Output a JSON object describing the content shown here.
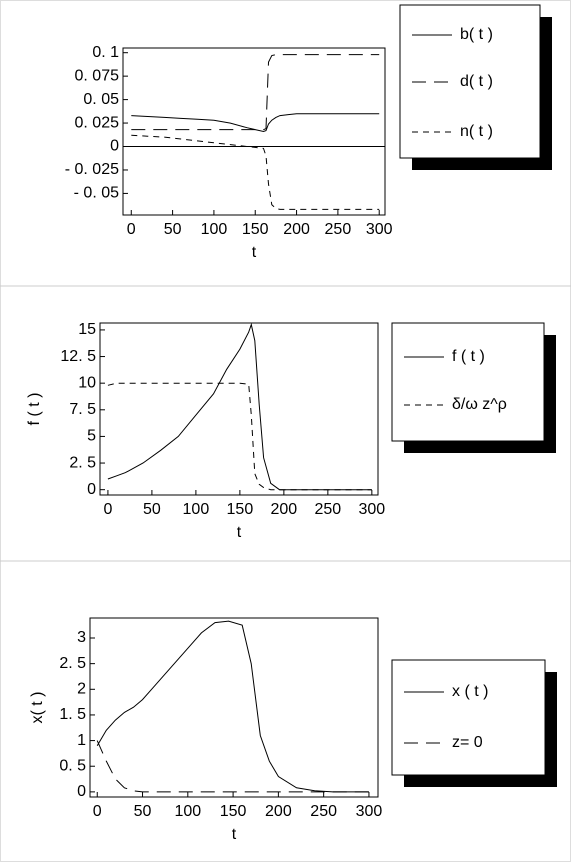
{
  "chart_data": [
    {
      "type": "line",
      "xlabel": "t",
      "xlim": [
        -10,
        307
      ],
      "ylim": [
        -0.073,
        0.105
      ],
      "zero_line": true,
      "xticks": [
        0,
        50,
        100,
        150,
        200,
        250,
        300
      ],
      "yticks": [
        {
          "value": 0.1,
          "label": "0. 1"
        },
        {
          "value": 0.075,
          "label": "0. 075"
        },
        {
          "value": 0.05,
          "label": "0. 05"
        },
        {
          "value": 0.025,
          "label": "0. 025"
        },
        0,
        {
          "value": -0.025,
          "label": "- 0. 025"
        },
        {
          "value": -0.05,
          "label": "- 0. 05"
        }
      ],
      "x": [
        0,
        20,
        40,
        60,
        80,
        100,
        120,
        140,
        150,
        160,
        163,
        166,
        170,
        175,
        180,
        190,
        200,
        250,
        300
      ],
      "series": [
        {
          "name": "b( t )",
          "color": "#000",
          "dash": "solid",
          "values": [
            0.033,
            0.032,
            0.031,
            0.03,
            0.029,
            0.028,
            0.025,
            0.02,
            0.018,
            0.016,
            0.017,
            0.024,
            0.028,
            0.031,
            0.033,
            0.034,
            0.035,
            0.035,
            0.035
          ]
        },
        {
          "name": "d( t )",
          "color": "#000",
          "dash": "long",
          "values": [
            0.018,
            0.018,
            0.018,
            0.018,
            0.018,
            0.018,
            0.018,
            0.018,
            0.018,
            0.018,
            0.019,
            0.09,
            0.097,
            0.098,
            0.098,
            0.098,
            0.098,
            0.098,
            0.098
          ]
        },
        {
          "name": "n( t )",
          "color": "#000",
          "dash": "short",
          "values": [
            0.012,
            0.011,
            0.01,
            0.008,
            0.006,
            0.004,
            0.002,
            0.0,
            -0.001,
            -0.002,
            -0.01,
            -0.04,
            -0.062,
            -0.066,
            -0.067,
            -0.067,
            -0.067,
            -0.067,
            -0.067
          ]
        }
      ]
    },
    {
      "type": "line",
      "xlabel": "t",
      "ylabel": "f ( t )",
      "xlim": [
        -9,
        307
      ],
      "ylim": [
        -0.5,
        15.65
      ],
      "xticks": [
        0,
        50,
        100,
        150,
        200,
        250,
        300
      ],
      "yticks": [
        15,
        {
          "value": 12.5,
          "label": "12. 5"
        },
        10,
        {
          "value": 7.5,
          "label": "7. 5"
        },
        5,
        {
          "value": 2.5,
          "label": "2. 5"
        },
        0
      ],
      "x": [
        0,
        10,
        20,
        40,
        60,
        80,
        100,
        120,
        135,
        150,
        160,
        163,
        167,
        172,
        177,
        185,
        195,
        250,
        300
      ],
      "series": [
        {
          "name": "f ( t )",
          "color": "#000",
          "dash": "solid",
          "values": [
            1.0,
            1.3,
            1.6,
            2.5,
            3.7,
            5.0,
            7.0,
            9.0,
            11.3,
            13.2,
            14.8,
            15.5,
            14,
            8,
            3,
            0.6,
            0,
            0,
            0
          ]
        },
        {
          "name": "δ/ω z^ρ",
          "color": "#000",
          "dash": "short",
          "values": [
            9.8,
            10,
            10,
            10,
            10,
            10,
            10,
            10,
            10,
            10,
            9.9,
            7,
            1.5,
            0.5,
            0.2,
            0,
            0,
            0,
            0
          ]
        }
      ]
    },
    {
      "type": "line",
      "xlabel": "t",
      "ylabel": "x( t )",
      "xlim": [
        -8,
        310
      ],
      "ylim": [
        -0.1,
        3.39
      ],
      "xticks": [
        0,
        50,
        100,
        150,
        200,
        250,
        300
      ],
      "yticks": [
        3,
        {
          "value": 2.5,
          "label": "2. 5"
        },
        2,
        {
          "value": 1.5,
          "label": "1. 5"
        },
        1,
        {
          "value": 0.5,
          "label": "0. 5"
        },
        0
      ],
      "x": [
        0,
        10,
        20,
        30,
        40,
        50,
        60,
        80,
        100,
        115,
        130,
        145,
        160,
        170,
        180,
        190,
        200,
        220,
        240,
        260,
        300
      ],
      "series": [
        {
          "name": "x ( t )",
          "color": "#000",
          "dash": "solid",
          "values": [
            0.9,
            1.2,
            1.4,
            1.55,
            1.65,
            1.8,
            2.0,
            2.4,
            2.8,
            3.1,
            3.3,
            3.33,
            3.25,
            2.5,
            1.1,
            0.6,
            0.3,
            0.08,
            0.02,
            0,
            0
          ]
        },
        {
          "name": "z= 0",
          "color": "#000",
          "dash": "long",
          "values": [
            1.0,
            0.6,
            0.25,
            0.08,
            0.02,
            0,
            0,
            0,
            0,
            0,
            0,
            0,
            0,
            0,
            0,
            0,
            0,
            0,
            0,
            0,
            0
          ]
        }
      ]
    }
  ]
}
